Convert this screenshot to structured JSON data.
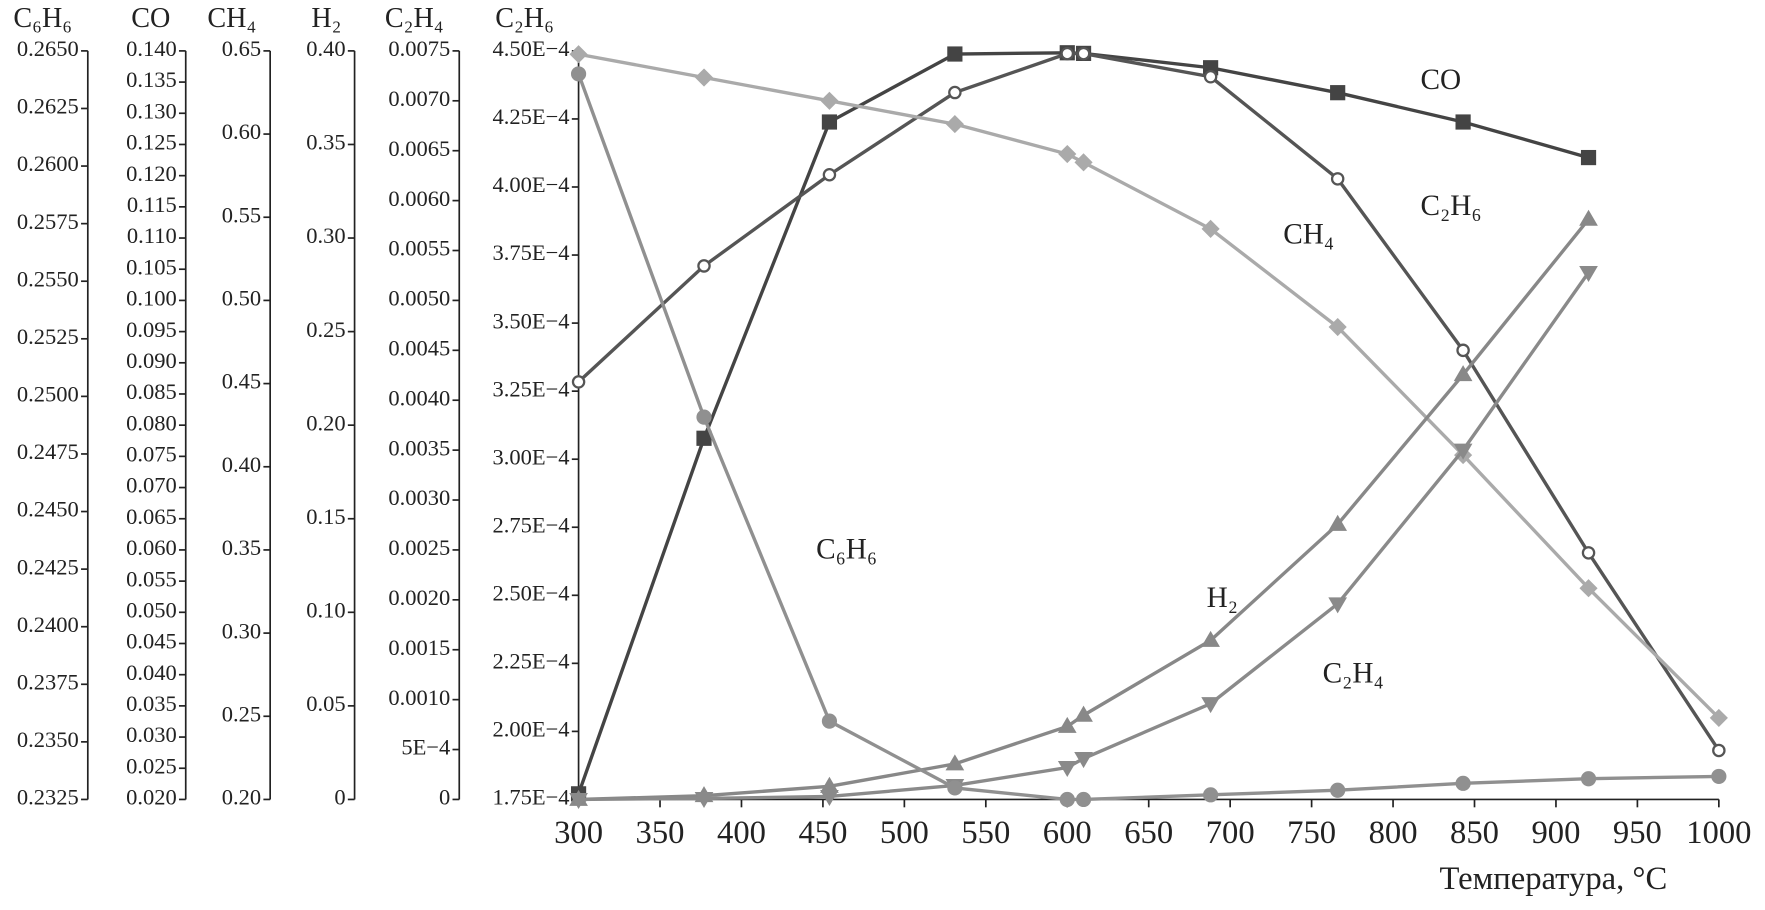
{
  "chart_data": {
    "type": "line",
    "x_label": "Температура, °C",
    "x": [
      300,
      377,
      454,
      531,
      600,
      610,
      688,
      766,
      843,
      920,
      1000
    ],
    "xlim": [
      300,
      1000
    ],
    "xticks": [
      300,
      350,
      400,
      450,
      500,
      550,
      600,
      650,
      700,
      750,
      800,
      850,
      900,
      950,
      1000
    ],
    "y_axes": [
      {
        "title": "C₆H₆",
        "lim": [
          0.2325,
          0.265
        ],
        "ticks": [
          0.2325,
          {
            "value": 0.235,
            "label": "0.2350"
          },
          0.2375,
          {
            "value": 0.24,
            "label": "0.2400"
          },
          0.2425,
          {
            "value": 0.245,
            "label": "0.2450"
          },
          0.2475,
          {
            "value": 0.25,
            "label": "0.2500"
          },
          0.2525,
          {
            "value": 0.255,
            "label": "0.2550"
          },
          0.2575,
          {
            "value": 0.26,
            "label": "0.2600"
          },
          0.2625,
          {
            "value": 0.265,
            "label": "0.2650"
          }
        ]
      },
      {
        "title": "CO",
        "lim": [
          0.02,
          0.14
        ],
        "ticks": [
          {
            "value": 0.02,
            "label": "0.020"
          },
          0.025,
          {
            "value": 0.03,
            "label": "0.030"
          },
          0.035,
          {
            "value": 0.04,
            "label": "0.040"
          },
          0.045,
          {
            "value": 0.05,
            "label": "0.050"
          },
          0.055,
          {
            "value": 0.06,
            "label": "0.060"
          },
          0.065,
          {
            "value": 0.07,
            "label": "0.070"
          },
          0.075,
          {
            "value": 0.08,
            "label": "0.080"
          },
          0.085,
          {
            "value": 0.09,
            "label": "0.090"
          },
          0.095,
          {
            "value": 0.1,
            "label": "0.100"
          },
          0.105,
          {
            "value": 0.11,
            "label": "0.110"
          },
          0.115,
          {
            "value": 0.12,
            "label": "0.120"
          },
          0.125,
          {
            "value": 0.13,
            "label": "0.130"
          },
          0.135,
          {
            "value": 0.14,
            "label": "0.140"
          }
        ]
      },
      {
        "title": "CH₄",
        "lim": [
          0.2,
          0.65
        ],
        "ticks": [
          {
            "value": 0.2,
            "label": "0.20"
          },
          0.25,
          {
            "value": 0.3,
            "label": "0.30"
          },
          0.35,
          {
            "value": 0.4,
            "label": "0.40"
          },
          0.45,
          {
            "value": 0.5,
            "label": "0.50"
          },
          0.55,
          {
            "value": 0.6,
            "label": "0.60"
          },
          0.65
        ]
      },
      {
        "title": "H₂",
        "lim": [
          0,
          0.4
        ],
        "ticks": [
          0,
          0.05,
          {
            "value": 0.1,
            "label": "0.10"
          },
          0.15,
          {
            "value": 0.2,
            "label": "0.20"
          },
          0.25,
          {
            "value": 0.3,
            "label": "0.30"
          },
          0.35,
          {
            "value": 0.4,
            "label": "0.40"
          }
        ]
      },
      {
        "title": "C₂H₄",
        "lim": [
          0,
          0.0075
        ],
        "ticks": [
          0,
          {
            "value": 0.0005,
            "label": "5E−4"
          },
          {
            "value": 0.001,
            "label": "0.0010"
          },
          0.0015,
          {
            "value": 0.002,
            "label": "0.0020"
          },
          0.0025,
          {
            "value": 0.003,
            "label": "0.0030"
          },
          0.0035,
          {
            "value": 0.004,
            "label": "0.0040"
          },
          0.0045,
          {
            "value": 0.005,
            "label": "0.0050"
          },
          0.0055,
          {
            "value": 0.006,
            "label": "0.0060"
          },
          0.0065,
          {
            "value": 0.007,
            "label": "0.0070"
          },
          0.0075
        ]
      },
      {
        "title": "C₂H₆",
        "lim": [
          0.000175,
          0.00045
        ],
        "ticks": [
          {
            "value": 0.000175,
            "label": "1.75E−4"
          },
          {
            "value": 0.0002,
            "label": "2.00E−4"
          },
          {
            "value": 0.000225,
            "label": "2.25E−4"
          },
          {
            "value": 0.00025,
            "label": "2.50E−4"
          },
          {
            "value": 0.000275,
            "label": "2.75E−4"
          },
          {
            "value": 0.0003,
            "label": "3.00E−4"
          },
          {
            "value": 0.000325,
            "label": "3.25E−4"
          },
          {
            "value": 0.00035,
            "label": "3.50E−4"
          },
          {
            "value": 0.000375,
            "label": "3.75E−4"
          },
          {
            "value": 0.0004,
            "label": "4.00E−4"
          },
          {
            "value": 0.000425,
            "label": "4.25E−4"
          },
          {
            "value": 0.00045,
            "label": "4.50E−4"
          }
        ]
      }
    ],
    "series": [
      {
        "name": "CO",
        "axis": 1,
        "color": "#444444",
        "marker": "square",
        "values": [
          0.0209,
          0.0779,
          0.1286,
          0.1395,
          0.1397,
          0.1396,
          0.1373,
          0.1333,
          0.1286,
          0.1229,
          null
        ]
      },
      {
        "name": "C₂H₆",
        "axis": 5,
        "color": "#555555",
        "marker": "circle-open",
        "values": [
          0.0003284,
          0.000371,
          0.0004045,
          0.0004347,
          0.000449,
          0.000449,
          0.0004405,
          0.000403,
          0.00034,
          0.0002656,
          0.000193
        ]
      },
      {
        "name": "CH₄",
        "axis": 2,
        "color": "#aaaaaa",
        "marker": "diamond",
        "values": [
          0.648,
          0.634,
          0.62,
          0.606,
          0.588,
          0.583,
          0.543,
          0.484,
          0.407,
          0.327,
          0.249
        ]
      },
      {
        "name": "H₂",
        "axis": 3,
        "color": "#888888",
        "marker": "triangle-up",
        "values": [
          0,
          0.002,
          0.007,
          0.019,
          0.039,
          0.045,
          0.085,
          0.147,
          0.227,
          0.31,
          null
        ]
      },
      {
        "name": "C₂H₄",
        "axis": 4,
        "color": "#8a8a8a",
        "marker": "triangle-down",
        "values": [
          0,
          1e-05,
          3e-05,
          0.00014,
          0.00032,
          0.00041,
          0.00096,
          0.00196,
          0.0035,
          0.00528,
          null
        ]
      },
      {
        "name": "C₆H₆",
        "axis": 0,
        "color": "#909090",
        "marker": "circle",
        "values": [
          0.264,
          0.2491,
          0.2359,
          0.233,
          0.2325,
          0.2325,
          0.2327,
          0.2329,
          0.2332,
          0.2334,
          0.2335
        ]
      }
    ]
  }
}
